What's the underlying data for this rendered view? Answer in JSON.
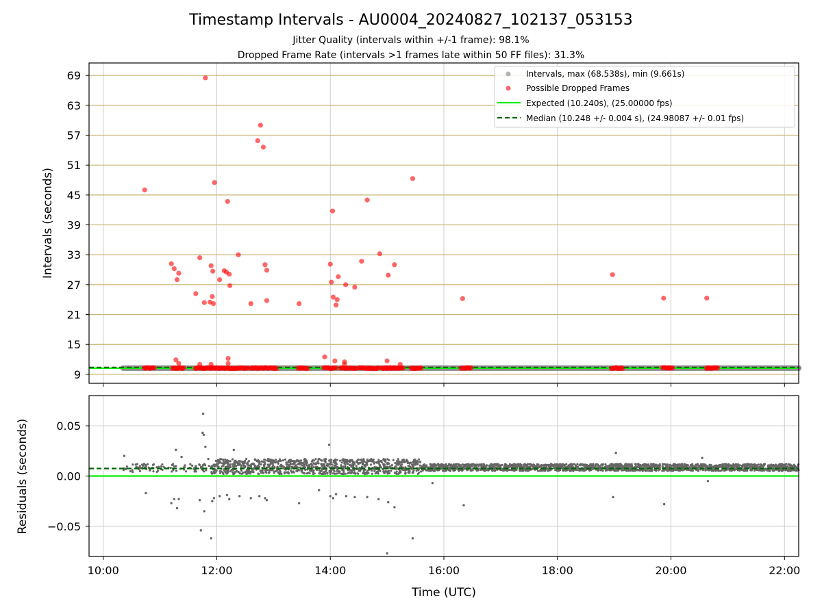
{
  "chart_data": [
    {
      "type": "scatter",
      "title": "Timestamp Intervals - AU0004_20240827_102137_053153",
      "subtitle_lines": [
        "Jitter Quality (intervals within +/-1 frame): 98.1%",
        "Dropped Frame Rate (intervals >1 frames late within 50 FF files): 31.3%"
      ],
      "ylabel": "Intervals (seconds)",
      "xlim_hours": [
        9.75,
        22.25
      ],
      "ylim": [
        7.2,
        71.5
      ],
      "yticks": [
        9,
        15,
        21,
        27,
        33,
        39,
        45,
        51,
        57,
        63,
        69
      ],
      "ytick_labels": [
        "9",
        "15",
        "21",
        "27",
        "33",
        "39",
        "45",
        "51",
        "57",
        "63",
        "69"
      ],
      "grid": true,
      "legend_position": "top-right",
      "legend": [
        "Intervals, max (68.538s), min (9.661s)",
        "Possible Dropped Frames",
        "Expected (10.240s), (25.00000 fps)",
        "Median (10.248 +/- 0.004 s), (24.98087 +/- 0.01 fps)"
      ],
      "expected_interval": 10.24,
      "median_interval": 10.248,
      "intervals_band": {
        "x_start_hours": 10.35,
        "x_end_hours": 22.25,
        "y": 10.24
      },
      "dropped_points": [
        {
          "x": 10.73,
          "y": 46.0
        },
        {
          "x": 11.2,
          "y": 31.2
        },
        {
          "x": 11.25,
          "y": 30.2
        },
        {
          "x": 11.3,
          "y": 28.0
        },
        {
          "x": 11.33,
          "y": 29.3
        },
        {
          "x": 11.28,
          "y": 11.9
        },
        {
          "x": 11.33,
          "y": 11.2
        },
        {
          "x": 11.63,
          "y": 25.2
        },
        {
          "x": 11.7,
          "y": 32.4
        },
        {
          "x": 11.78,
          "y": 23.4
        },
        {
          "x": 11.8,
          "y": 68.5
        },
        {
          "x": 11.88,
          "y": 23.5
        },
        {
          "x": 11.9,
          "y": 30.8
        },
        {
          "x": 11.92,
          "y": 24.6
        },
        {
          "x": 11.93,
          "y": 29.7
        },
        {
          "x": 11.94,
          "y": 23.2
        },
        {
          "x": 11.96,
          "y": 47.5
        },
        {
          "x": 11.7,
          "y": 11.0
        },
        {
          "x": 11.9,
          "y": 11.0
        },
        {
          "x": 12.05,
          "y": 28.0
        },
        {
          "x": 12.13,
          "y": 29.8
        },
        {
          "x": 12.17,
          "y": 29.5
        },
        {
          "x": 12.19,
          "y": 43.7
        },
        {
          "x": 12.22,
          "y": 29.1
        },
        {
          "x": 12.23,
          "y": 26.8
        },
        {
          "x": 12.2,
          "y": 12.2
        },
        {
          "x": 12.2,
          "y": 11.2
        },
        {
          "x": 12.38,
          "y": 33.0
        },
        {
          "x": 12.6,
          "y": 23.2
        },
        {
          "x": 12.72,
          "y": 55.9
        },
        {
          "x": 12.77,
          "y": 59.0
        },
        {
          "x": 12.82,
          "y": 54.6
        },
        {
          "x": 12.85,
          "y": 31.0
        },
        {
          "x": 12.88,
          "y": 29.9
        },
        {
          "x": 12.88,
          "y": 23.8
        },
        {
          "x": 13.45,
          "y": 23.2
        },
        {
          "x": 13.9,
          "y": 12.5
        },
        {
          "x": 14.0,
          "y": 31.1
        },
        {
          "x": 14.02,
          "y": 27.5
        },
        {
          "x": 14.04,
          "y": 41.8
        },
        {
          "x": 14.05,
          "y": 24.5
        },
        {
          "x": 14.08,
          "y": 11.7
        },
        {
          "x": 14.1,
          "y": 22.9
        },
        {
          "x": 14.12,
          "y": 24.0
        },
        {
          "x": 14.14,
          "y": 28.6
        },
        {
          "x": 14.25,
          "y": 11.5
        },
        {
          "x": 14.25,
          "y": 11.0
        },
        {
          "x": 14.27,
          "y": 27.0
        },
        {
          "x": 14.43,
          "y": 26.5
        },
        {
          "x": 14.55,
          "y": 31.7
        },
        {
          "x": 14.65,
          "y": 44.0
        },
        {
          "x": 14.87,
          "y": 33.2
        },
        {
          "x": 15.02,
          "y": 28.9
        },
        {
          "x": 15.0,
          "y": 11.7
        },
        {
          "x": 15.13,
          "y": 31.0
        },
        {
          "x": 15.23,
          "y": 11.0
        },
        {
          "x": 15.45,
          "y": 48.3
        },
        {
          "x": 16.33,
          "y": 24.2
        },
        {
          "x": 18.97,
          "y": 29.0
        },
        {
          "x": 19.87,
          "y": 24.3
        },
        {
          "x": 20.63,
          "y": 24.3
        }
      ],
      "dropped_clusters_near_expected": [
        {
          "x_start_hours": 10.72,
          "x_end_hours": 10.9
        },
        {
          "x_start_hours": 11.22,
          "x_end_hours": 11.42
        },
        {
          "x_start_hours": 11.62,
          "x_end_hours": 12.55
        },
        {
          "x_start_hours": 12.6,
          "x_end_hours": 13.05
        },
        {
          "x_start_hours": 13.43,
          "x_end_hours": 13.6
        },
        {
          "x_start_hours": 13.88,
          "x_end_hours": 14.1
        },
        {
          "x_start_hours": 14.18,
          "x_end_hours": 14.45
        },
        {
          "x_start_hours": 14.5,
          "x_end_hours": 14.85
        },
        {
          "x_start_hours": 14.9,
          "x_end_hours": 15.28
        },
        {
          "x_start_hours": 15.42,
          "x_end_hours": 15.6
        },
        {
          "x_start_hours": 16.3,
          "x_end_hours": 16.48
        },
        {
          "x_start_hours": 18.95,
          "x_end_hours": 19.15
        },
        {
          "x_start_hours": 19.85,
          "x_end_hours": 20.03
        },
        {
          "x_start_hours": 20.62,
          "x_end_hours": 20.82
        }
      ]
    },
    {
      "type": "scatter",
      "xlabel": "Time (UTC)",
      "ylabel": "Residuals (seconds)",
      "xlim_hours": [
        9.75,
        22.25
      ],
      "ylim": [
        -0.08,
        0.08
      ],
      "yticks": [
        0.05,
        0.0,
        -0.05
      ],
      "ytick_labels": [
        "0.05",
        "0.00",
        "−0.05"
      ],
      "xticks_hours": [
        10,
        12,
        14,
        16,
        18,
        20,
        22
      ],
      "xtick_labels": [
        "10:00",
        "12:00",
        "14:00",
        "16:00",
        "18:00",
        "20:00",
        "22:00"
      ],
      "grid": true,
      "expected_residual": 0.0,
      "median_residual": 0.0075,
      "residual_bands": [
        {
          "x_start_hours": 11.9,
          "x_end_hours": 15.6,
          "y_low": 0.002,
          "y_high": 0.017
        },
        {
          "x_start_hours": 15.6,
          "x_end_hours": 22.25,
          "y_low": 0.005,
          "y_high": 0.012
        }
      ],
      "outlier_points": [
        {
          "x": 10.37,
          "y": 0.02
        },
        {
          "x": 10.4,
          "y": 0.007
        },
        {
          "x": 10.72,
          "y": 0.012
        },
        {
          "x": 10.75,
          "y": -0.017
        },
        {
          "x": 11.2,
          "y": -0.027
        },
        {
          "x": 11.25,
          "y": -0.023
        },
        {
          "x": 11.28,
          "y": 0.026
        },
        {
          "x": 11.3,
          "y": -0.032
        },
        {
          "x": 11.33,
          "y": -0.023
        },
        {
          "x": 11.38,
          "y": 0.019
        },
        {
          "x": 11.63,
          "y": 0.01
        },
        {
          "x": 11.7,
          "y": -0.024
        },
        {
          "x": 11.72,
          "y": -0.054
        },
        {
          "x": 11.75,
          "y": 0.043
        },
        {
          "x": 11.76,
          "y": 0.062
        },
        {
          "x": 11.77,
          "y": 0.041
        },
        {
          "x": 11.78,
          "y": -0.035
        },
        {
          "x": 11.8,
          "y": 0.029
        },
        {
          "x": 11.85,
          "y": 0.017
        },
        {
          "x": 11.9,
          "y": -0.062
        },
        {
          "x": 11.92,
          "y": -0.025
        },
        {
          "x": 11.95,
          "y": -0.022
        },
        {
          "x": 12.05,
          "y": -0.02
        },
        {
          "x": 12.18,
          "y": -0.019
        },
        {
          "x": 12.22,
          "y": -0.023
        },
        {
          "x": 12.3,
          "y": 0.026
        },
        {
          "x": 12.4,
          "y": -0.02
        },
        {
          "x": 12.6,
          "y": -0.022
        },
        {
          "x": 12.75,
          "y": -0.02
        },
        {
          "x": 12.85,
          "y": -0.022
        },
        {
          "x": 12.88,
          "y": -0.024
        },
        {
          "x": 13.45,
          "y": -0.027
        },
        {
          "x": 13.98,
          "y": 0.031
        },
        {
          "x": 13.8,
          "y": -0.014
        },
        {
          "x": 14.0,
          "y": -0.02
        },
        {
          "x": 14.05,
          "y": -0.022
        },
        {
          "x": 14.1,
          "y": -0.018
        },
        {
          "x": 14.28,
          "y": -0.02
        },
        {
          "x": 14.43,
          "y": -0.021
        },
        {
          "x": 14.65,
          "y": -0.021
        },
        {
          "x": 14.85,
          "y": -0.023
        },
        {
          "x": 15.0,
          "y": -0.077
        },
        {
          "x": 15.02,
          "y": -0.026
        },
        {
          "x": 15.13,
          "y": -0.031
        },
        {
          "x": 15.45,
          "y": -0.062
        },
        {
          "x": 15.8,
          "y": -0.007
        },
        {
          "x": 16.35,
          "y": -0.029
        },
        {
          "x": 18.98,
          "y": -0.021
        },
        {
          "x": 19.03,
          "y": 0.023
        },
        {
          "x": 19.88,
          "y": -0.028
        },
        {
          "x": 20.55,
          "y": 0.018
        },
        {
          "x": 20.65,
          "y": -0.005
        }
      ]
    }
  ],
  "colors": {
    "intervals": "#808080",
    "dropped": "#ff0000",
    "expected": "#00ee00",
    "median": "#006400",
    "grid_h_top": "#c8b474",
    "grid": "#cccccc",
    "residual_points": "#666666"
  }
}
